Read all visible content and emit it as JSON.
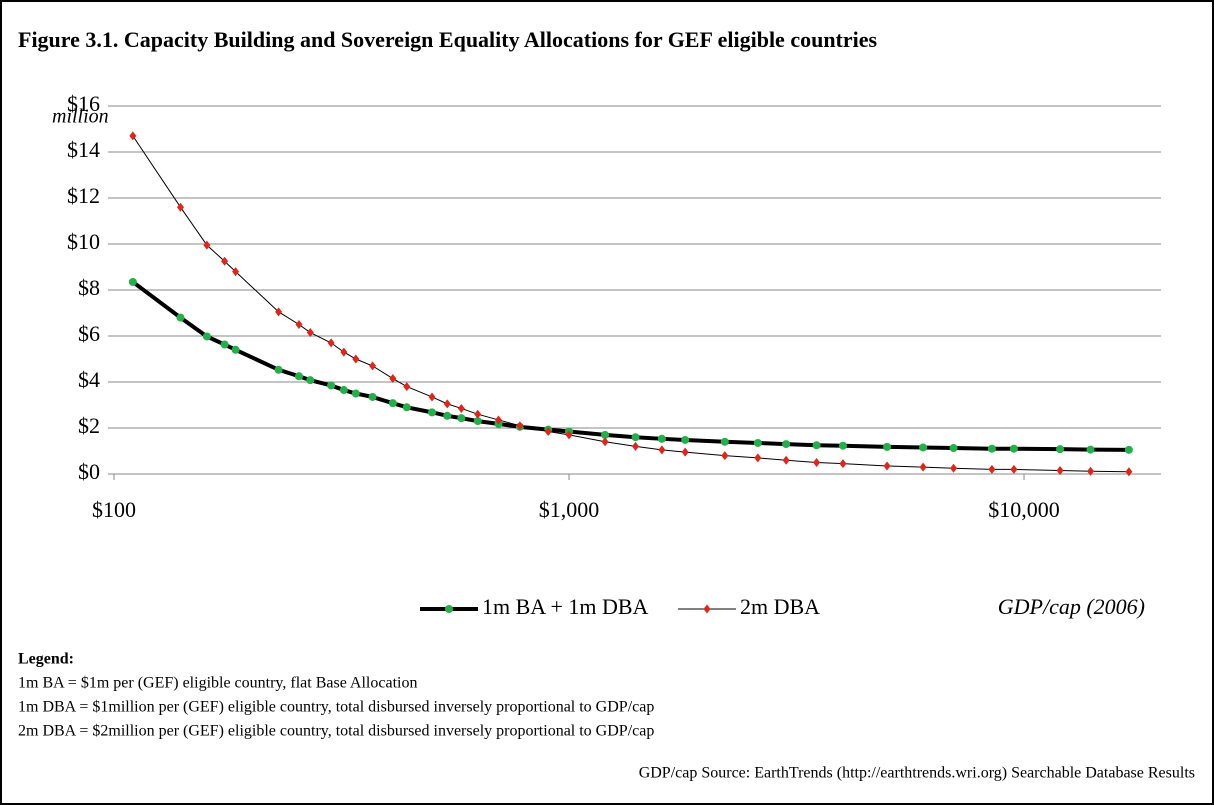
{
  "chart_data": {
    "type": "line",
    "title": "Figure 3.1. Capacity Building and Sovereign Equality Allocations for GEF eligible countries",
    "y_label": "million",
    "x_label": "GDP/cap (2006)",
    "x_log": true,
    "grid": true,
    "legend_position": "bottom",
    "xlim": [
      100,
      20000
    ],
    "xticks": [
      {
        "value": 100,
        "label": "$100"
      },
      {
        "value": 1000,
        "label": "$1,000"
      },
      {
        "value": 10000,
        "label": "$10,000"
      }
    ],
    "ylim": [
      0,
      16
    ],
    "yticks": [
      {
        "value": 0,
        "label": "$0"
      },
      {
        "value": 2,
        "label": "$2"
      },
      {
        "value": 4,
        "label": "$4"
      },
      {
        "value": 6,
        "label": "$6"
      },
      {
        "value": 8,
        "label": "$8"
      },
      {
        "value": 10,
        "label": "$10"
      },
      {
        "value": 12,
        "label": "$12"
      },
      {
        "value": 14,
        "label": "$14"
      },
      {
        "value": 16,
        "label": "$16"
      }
    ],
    "x": [
      110,
      140,
      160,
      175,
      185,
      230,
      255,
      270,
      300,
      320,
      340,
      370,
      410,
      440,
      500,
      540,
      580,
      630,
      700,
      780,
      900,
      1000,
      1200,
      1400,
      1600,
      1800,
      2200,
      2600,
      3000,
      3500,
      4000,
      5000,
      6000,
      7000,
      8500,
      9500,
      12000,
      14000,
      17000
    ],
    "series": [
      {
        "name": "1m BA + 1m DBA",
        "color": "#22b04a",
        "line_color": "#000000",
        "line_width": 4,
        "marker": "circle",
        "values": [
          8.35,
          6.8,
          5.98,
          5.63,
          5.4,
          4.53,
          4.25,
          4.08,
          3.85,
          3.65,
          3.5,
          3.35,
          3.08,
          2.9,
          2.68,
          2.53,
          2.43,
          2.3,
          2.18,
          2.05,
          1.93,
          1.85,
          1.7,
          1.6,
          1.53,
          1.48,
          1.4,
          1.35,
          1.3,
          1.25,
          1.23,
          1.18,
          1.15,
          1.13,
          1.1,
          1.1,
          1.08,
          1.06,
          1.05
        ]
      },
      {
        "name": "2m DBA",
        "color": "#e0251b",
        "line_color": "#000000",
        "line_width": 1,
        "marker": "diamond",
        "values": [
          14.7,
          11.6,
          9.95,
          9.25,
          8.8,
          7.05,
          6.5,
          6.15,
          5.7,
          5.3,
          5.0,
          4.7,
          4.15,
          3.8,
          3.35,
          3.05,
          2.85,
          2.6,
          2.35,
          2.1,
          1.85,
          1.7,
          1.4,
          1.2,
          1.05,
          0.95,
          0.8,
          0.7,
          0.6,
          0.5,
          0.45,
          0.35,
          0.3,
          0.25,
          0.2,
          0.2,
          0.15,
          0.12,
          0.1
        ]
      }
    ]
  },
  "notes": {
    "heading": "Legend:",
    "lines": [
      "1m BA = $1m per (GEF) eligible country, flat Base Allocation",
      "1m DBA = $1million per (GEF) eligible country, total disbursed inversely proportional to GDP/cap",
      "2m DBA = $2million per (GEF) eligible country, total disbursed inversely proportional to GDP/cap"
    ],
    "source": "GDP/cap Source: EarthTrends (http://earthtrends.wri.org) Searchable Database Results"
  }
}
